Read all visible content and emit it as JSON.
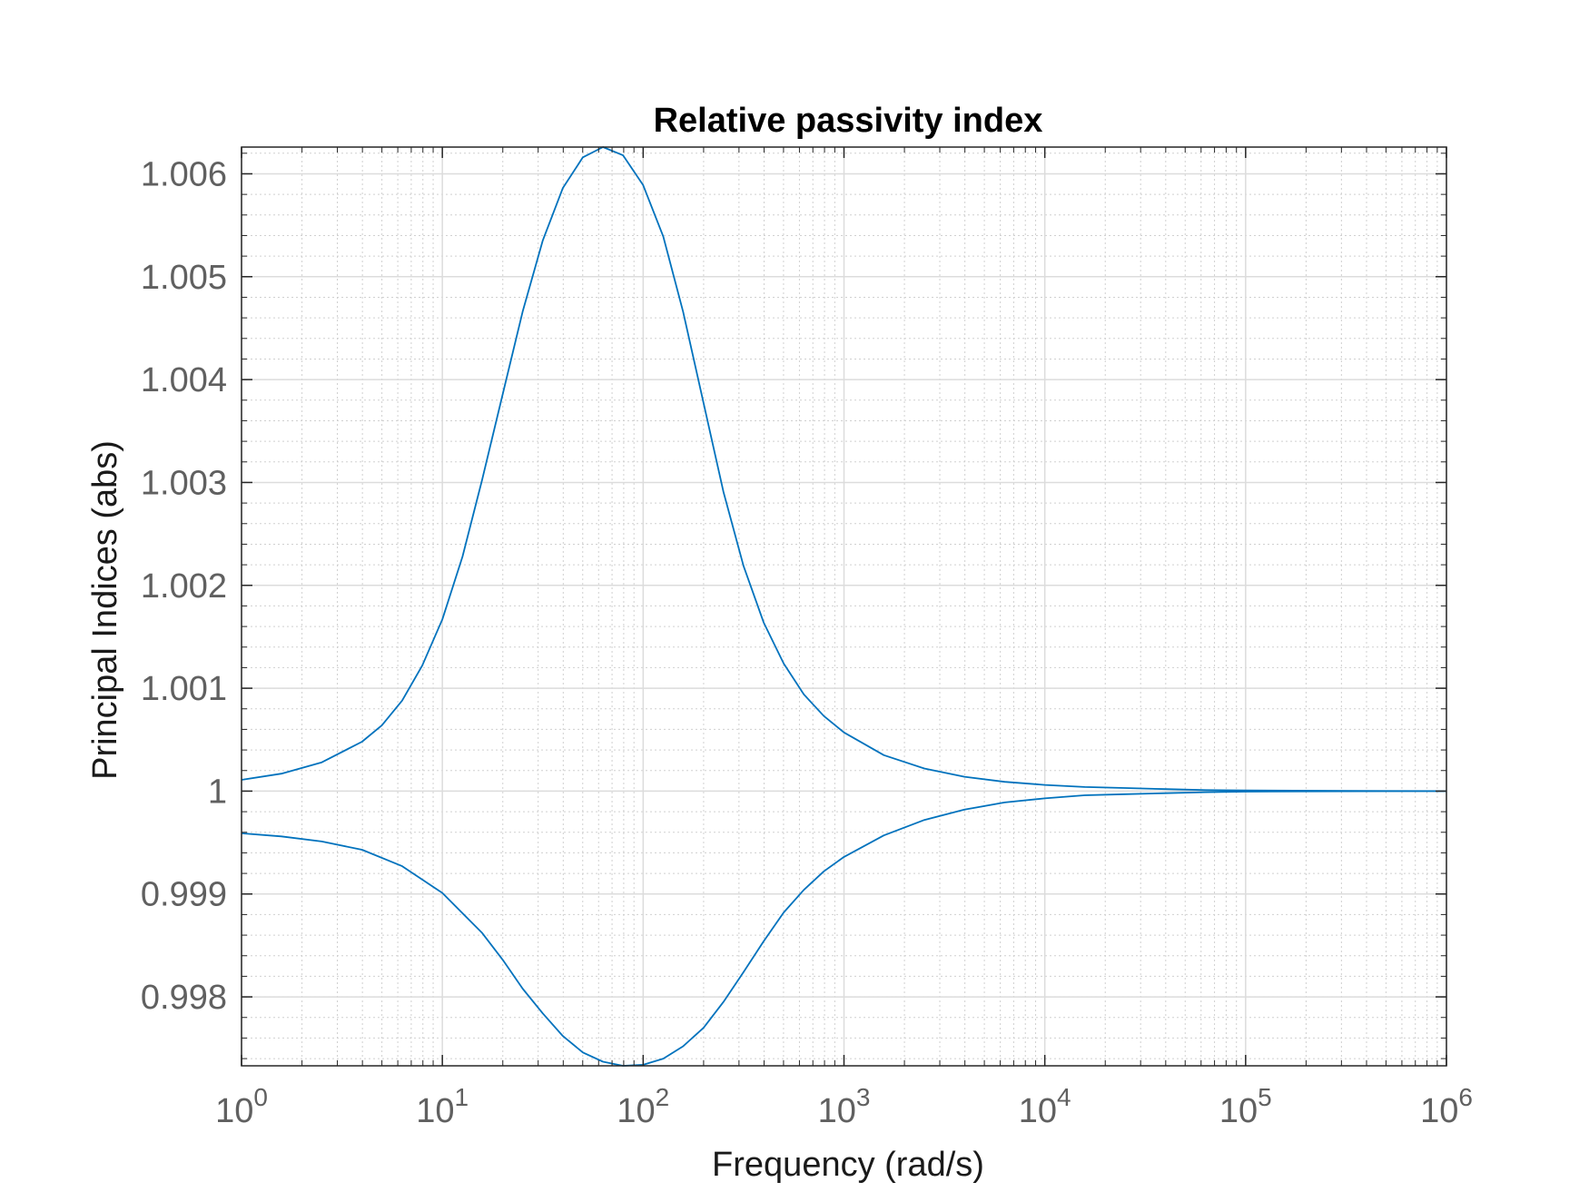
{
  "chart_data": {
    "type": "line",
    "title": "Relative passivity index",
    "xlabel": "Frequency (rad/s)",
    "ylabel": "Principal Indices (abs)",
    "x_scale": "log",
    "xlim": [
      1,
      1000000
    ],
    "ylim": [
      0.99733,
      1.00626
    ],
    "grid": true,
    "minor_grid": true,
    "x_ticks": [
      {
        "base": "10",
        "exp": "0",
        "value": 1
      },
      {
        "base": "10",
        "exp": "1",
        "value": 10
      },
      {
        "base": "10",
        "exp": "2",
        "value": 100
      },
      {
        "base": "10",
        "exp": "3",
        "value": 1000
      },
      {
        "base": "10",
        "exp": "4",
        "value": 10000
      },
      {
        "base": "10",
        "exp": "5",
        "value": 100000
      },
      {
        "base": "10",
        "exp": "6",
        "value": 1000000
      }
    ],
    "y_ticks": [
      {
        "label": "0.998",
        "value": 0.998
      },
      {
        "label": "0.999",
        "value": 0.999
      },
      {
        "label": "1",
        "value": 1.0
      },
      {
        "label": "1.001",
        "value": 1.001
      },
      {
        "label": "1.002",
        "value": 1.002
      },
      {
        "label": "1.003",
        "value": 1.003
      },
      {
        "label": "1.004",
        "value": 1.004
      },
      {
        "label": "1.005",
        "value": 1.005
      },
      {
        "label": "1.006",
        "value": 1.006
      }
    ],
    "color": "#0072BD",
    "series": [
      {
        "x": [
          1,
          1.58,
          2.51,
          3.98,
          5,
          6.31,
          7.94,
          10,
          12.6,
          15.8,
          20,
          25.1,
          31.6,
          39.8,
          50.1,
          63.1,
          79.4,
          100,
          126,
          158,
          200,
          251,
          316,
          398,
          501,
          631,
          794,
          1000,
          1580,
          2510,
          3980,
          6310,
          10000,
          15800,
          25100,
          39800,
          63100,
          100000,
          316000,
          1000000
        ],
        "y": [
          1.00011,
          1.00017,
          1.00028,
          1.00048,
          1.00064,
          1.00088,
          1.00122,
          1.00167,
          1.00228,
          1.00303,
          1.00386,
          1.00466,
          1.00535,
          1.00586,
          1.00616,
          1.00626,
          1.00618,
          1.00589,
          1.00539,
          1.00466,
          1.00377,
          1.00291,
          1.00219,
          1.00164,
          1.00124,
          1.00094,
          1.00073,
          1.00057,
          1.00035,
          1.00022,
          1.00014,
          1.00009,
          1.00006,
          1.00004,
          1.00003,
          1.00002,
          1.00001,
          1.000006,
          1.000002,
          1.0
        ]
      },
      {
        "x": [
          1,
          1.58,
          2.51,
          3.98,
          6.31,
          10,
          15.8,
          20,
          25.1,
          31.6,
          39.8,
          50.1,
          63.1,
          79.4,
          100,
          126,
          158,
          200,
          251,
          316,
          398,
          501,
          631,
          794,
          1000,
          1580,
          2510,
          3980,
          6310,
          10000,
          15800,
          25100,
          39800,
          63100,
          100000,
          316000,
          1000000
        ],
        "y": [
          0.99959,
          0.99956,
          0.99951,
          0.99943,
          0.99927,
          0.99901,
          0.99862,
          0.99836,
          0.99808,
          0.99784,
          0.99762,
          0.99746,
          0.99737,
          0.99733,
          0.99734,
          0.9974,
          0.99752,
          0.9977,
          0.99795,
          0.99824,
          0.99854,
          0.99882,
          0.99904,
          0.99922,
          0.99936,
          0.99957,
          0.99972,
          0.99982,
          0.99989,
          0.99993,
          0.99996,
          0.99997,
          0.99998,
          0.99999,
          0.999995,
          0.999998,
          1.0
        ]
      }
    ]
  }
}
